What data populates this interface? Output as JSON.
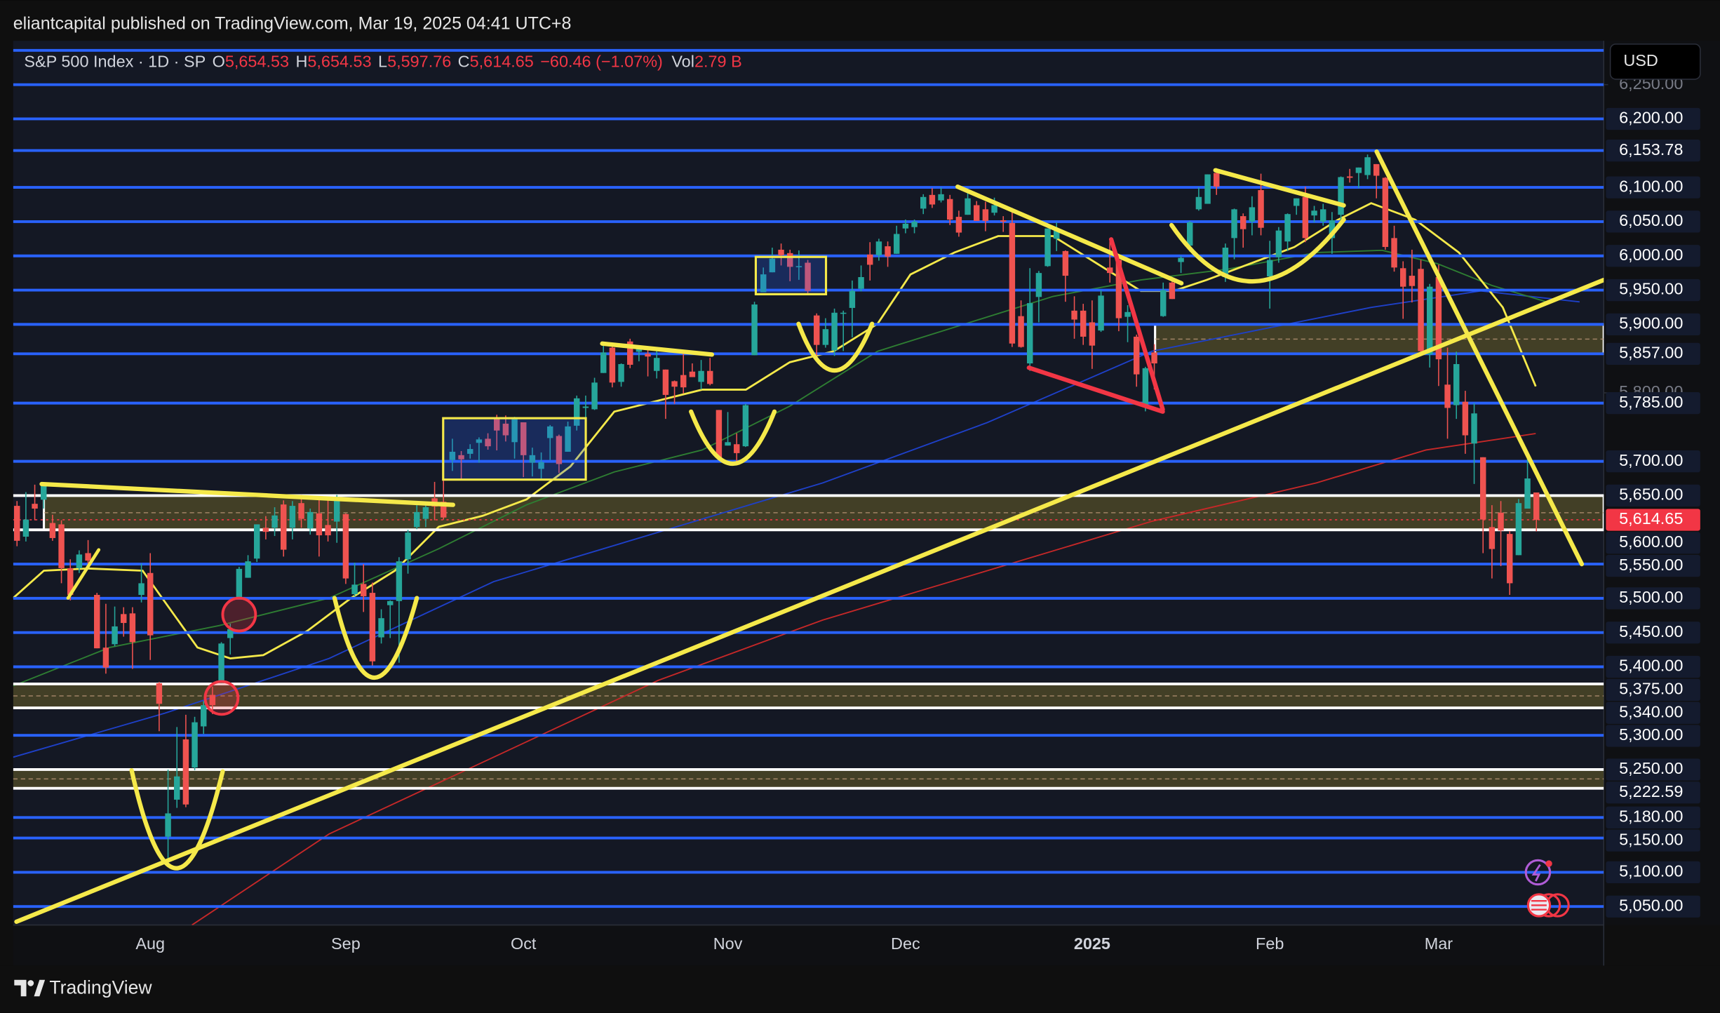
{
  "chart_data": {
    "type": "candlestick",
    "published": "eliantcapital published on TradingView.com, Mar 19, 2025 04:41 UTC+8",
    "symbol": "S&P 500 Index · 1D · SP",
    "ohlc": [
      {
        "key": "O",
        "value": "5,654.53"
      },
      {
        "key": "H",
        "value": "5,654.53"
      },
      {
        "key": "L",
        "value": "5,597.76"
      },
      {
        "key": "C",
        "value": "5,614.65"
      }
    ],
    "change": "−60.46 (−1.07%)",
    "volume": {
      "key": "Vol",
      "value": "2.79 B"
    },
    "currency": "USD",
    "brand": "TradingView",
    "up_color": "#26a69a",
    "down_color": "#ef5350",
    "ylim": [
      5023,
      6314
    ],
    "yticks": [
      {
        "value": 6250,
        "label": "6,250.00"
      },
      {
        "value": 5800,
        "label": "5,800.00"
      }
    ],
    "last_price": {
      "value": 5614.65,
      "label": "5,614.65",
      "color": "#f23645"
    },
    "unlabeled_levels": [
      6300,
      6250
    ],
    "level_color": "#2962ff",
    "levels": [
      {
        "value": 6200,
        "label": "6,200.00",
        "color": "#2962ff"
      },
      {
        "value": 6153.78,
        "label": "6,153.78",
        "color": "#2962ff"
      },
      {
        "value": 6100,
        "label": "6,100.00",
        "color": "#2962ff"
      },
      {
        "value": 6050,
        "label": "6,050.00",
        "color": "#2962ff"
      },
      {
        "value": 6000,
        "label": "6,000.00",
        "color": "#2962ff"
      },
      {
        "value": 5950,
        "label": "5,950.00",
        "color": "#2962ff"
      },
      {
        "value": 5900,
        "label": "5,900.00",
        "color": "#2962ff"
      },
      {
        "value": 5857,
        "label": "5,857.00",
        "color": "#2962ff"
      },
      {
        "value": 5785,
        "label": "5,785.00",
        "color": "#2962ff"
      },
      {
        "value": 5700,
        "label": "5,700.00",
        "color": "#2962ff"
      },
      {
        "value": 5650,
        "label": "5,650.00",
        "color": "#ffffff"
      },
      {
        "value": 5600,
        "label": "5,600.00",
        "color": "#ffffff"
      },
      {
        "value": 5550,
        "label": "5,550.00",
        "color": "#2962ff"
      },
      {
        "value": 5500,
        "label": "5,500.00",
        "color": "#2962ff"
      },
      {
        "value": 5450,
        "label": "5,450.00",
        "color": "#2962ff"
      },
      {
        "value": 5400,
        "label": "5,400.00",
        "color": "#2962ff"
      },
      {
        "value": 5375,
        "label": "5,375.00",
        "color": "#ffffff"
      },
      {
        "value": 5340,
        "label": "5,340.00",
        "color": "#ffffff"
      },
      {
        "value": 5300,
        "label": "5,300.00",
        "color": "#2962ff"
      },
      {
        "value": 5250,
        "label": "5,250.00",
        "color": "#ffffff"
      },
      {
        "value": 5222.59,
        "label": "5,222.59",
        "color": "#ffffff"
      },
      {
        "value": 5180,
        "label": "5,180.00",
        "color": "#2962ff"
      },
      {
        "value": 5150,
        "label": "5,150.00",
        "color": "#2962ff"
      },
      {
        "value": 5100,
        "label": "5,100.00",
        "color": "#2962ff"
      },
      {
        "value": 5050,
        "label": "5,050.00",
        "color": "#2962ff"
      }
    ],
    "zones": [
      {
        "top": 5900,
        "bottom": 5857,
        "color": "#4a4727"
      },
      {
        "top": 5650,
        "bottom": 5600,
        "color": "#4a4727"
      },
      {
        "top": 5375,
        "bottom": 5340,
        "color": "#4a4727"
      },
      {
        "top": 5250,
        "bottom": 5222.59,
        "color": "#4a4727"
      }
    ],
    "categories": [
      null,
      null,
      null,
      null,
      null,
      null,
      null,
      null,
      null,
      null,
      null,
      null,
      null,
      null,
      null,
      "Aug",
      null,
      null,
      null,
      null,
      null,
      null,
      null,
      null,
      null,
      null,
      null,
      null,
      null,
      null,
      null,
      null,
      null,
      null,
      null,
      null,
      null,
      "Sep",
      null,
      null,
      null,
      null,
      null,
      null,
      null,
      null,
      null,
      null,
      null,
      null,
      null,
      null,
      null,
      null,
      null,
      null,
      null,
      "Oct",
      null,
      null,
      null,
      null,
      null,
      null,
      null,
      null,
      null,
      null,
      null,
      null,
      null,
      null,
      null,
      null,
      null,
      null,
      null,
      null,
      null,
      null,
      "Nov",
      null,
      null,
      null,
      null,
      null,
      null,
      null,
      null,
      null,
      null,
      null,
      null,
      null,
      null,
      null,
      null,
      null,
      null,
      null,
      "Dec",
      null,
      null,
      null,
      null,
      null,
      null,
      null,
      null,
      null,
      null,
      null,
      null,
      null,
      null,
      null,
      null,
      null,
      null,
      null,
      null,
      "2025",
      null,
      null,
      null,
      null,
      null,
      null,
      null,
      null,
      null,
      null,
      null,
      null,
      null,
      null,
      null,
      null,
      null,
      null,
      null,
      "Feb",
      null,
      null,
      null,
      null,
      null,
      null,
      null,
      null,
      null,
      null,
      null,
      null,
      null,
      null,
      null,
      null,
      null,
      null,
      "Mar",
      null,
      null,
      null,
      null,
      null,
      null,
      null,
      null,
      null,
      null,
      null
    ],
    "candles": [
      [
        5635,
        5642,
        5576,
        5584
      ],
      [
        5590,
        5655,
        5583,
        5615
      ],
      [
        5638,
        5666,
        5614,
        5631
      ],
      [
        5644,
        5667,
        5631,
        5667
      ],
      [
        5610,
        5622,
        5584,
        5588
      ],
      [
        5608,
        5614,
        5522,
        5544
      ],
      [
        5544,
        5557,
        5497,
        5505
      ],
      [
        5544,
        5570,
        5537,
        5564
      ],
      [
        5566,
        5585,
        5551,
        5555
      ],
      [
        5505,
        5508,
        5427,
        5427
      ],
      [
        5428,
        5492,
        5390,
        5399
      ],
      [
        5433,
        5488,
        5430,
        5459
      ],
      [
        5477,
        5487,
        5444,
        5464
      ],
      [
        5478,
        5487,
        5397,
        5436
      ],
      [
        5505,
        5551,
        5494,
        5522
      ],
      [
        5537,
        5566,
        5410,
        5446
      ],
      [
        5376,
        5378,
        5306,
        5346
      ],
      [
        5152,
        5250,
        5119,
        5186
      ],
      [
        5206,
        5312,
        5194,
        5240
      ],
      [
        5294,
        5330,
        5195,
        5199
      ],
      [
        5253,
        5327,
        5249,
        5319
      ],
      [
        5313,
        5350,
        5302,
        5344
      ],
      [
        5359,
        5371,
        5331,
        5344
      ],
      [
        5376,
        5436,
        5376,
        5434
      ],
      [
        5442,
        5463,
        5418,
        5455
      ],
      [
        5501,
        5546,
        5498,
        5543
      ],
      [
        5530,
        5563,
        5530,
        5554
      ],
      [
        5558,
        5608,
        5553,
        5608
      ],
      [
        5603,
        5620,
        5586,
        5597
      ],
      [
        5603,
        5633,
        5591,
        5621
      ],
      [
        5637,
        5643,
        5561,
        5571
      ],
      [
        5603,
        5642,
        5586,
        5635
      ],
      [
        5639,
        5651,
        5603,
        5616
      ],
      [
        5602,
        5631,
        5593,
        5626
      ],
      [
        5624,
        5647,
        5561,
        5592
      ],
      [
        5607,
        5647,
        5583,
        5592
      ],
      [
        5612,
        5651,
        5581,
        5648
      ],
      [
        5623,
        5624,
        5521,
        5529
      ],
      [
        5506,
        5552,
        5503,
        5520
      ],
      [
        5521,
        5550,
        5480,
        5503
      ],
      [
        5508,
        5523,
        5402,
        5408
      ],
      [
        5443,
        5484,
        5434,
        5471
      ],
      [
        5490,
        5497,
        5442,
        5496
      ],
      [
        5496,
        5560,
        5406,
        5554
      ],
      [
        5557,
        5600,
        5536,
        5596
      ],
      [
        5604,
        5636,
        5601,
        5626
      ],
      [
        5616,
        5636,
        5604,
        5633
      ],
      [
        5646,
        5670,
        5614,
        5634
      ],
      [
        5641,
        5690,
        5615,
        5618
      ],
      [
        5702,
        5733,
        5686,
        5714
      ],
      [
        5709,
        5715,
        5674,
        5703
      ],
      [
        5711,
        5725,
        5704,
        5718
      ],
      [
        5727,
        5735,
        5698,
        5732
      ],
      [
        5733,
        5741,
        5717,
        5722
      ],
      [
        5762,
        5768,
        5716,
        5745
      ],
      [
        5755,
        5767,
        5729,
        5738
      ],
      [
        5728,
        5765,
        5704,
        5762
      ],
      [
        5757,
        5757,
        5677,
        5709
      ],
      [
        5698,
        5720,
        5678,
        5709
      ],
      [
        5689,
        5713,
        5675,
        5699
      ],
      [
        5734,
        5753,
        5702,
        5751
      ],
      [
        5737,
        5739,
        5683,
        5696
      ],
      [
        5714,
        5758,
        5714,
        5751
      ],
      [
        5752,
        5796,
        5745,
        5792
      ],
      [
        5778,
        5796,
        5764,
        5780
      ],
      [
        5776,
        5822,
        5775,
        5815
      ],
      [
        5829,
        5871,
        5829,
        5859
      ],
      [
        5866,
        5871,
        5808,
        5815
      ],
      [
        5816,
        5843,
        5809,
        5842
      ],
      [
        5875,
        5879,
        5836,
        5841
      ],
      [
        5860,
        5865,
        5846,
        5864
      ],
      [
        5857,
        5866,
        5824,
        5853
      ],
      [
        5832,
        5864,
        5821,
        5851
      ],
      [
        5834,
        5834,
        5762,
        5797
      ],
      [
        5817,
        5818,
        5784,
        5809
      ],
      [
        5826,
        5862,
        5799,
        5808
      ],
      [
        5831,
        5843,
        5823,
        5823
      ],
      [
        5816,
        5848,
        5805,
        5832
      ],
      [
        5832,
        5851,
        5811,
        5813
      ],
      [
        5775,
        5775,
        5703,
        5705
      ],
      [
        5723,
        5772,
        5723,
        5728
      ],
      [
        5725,
        5741,
        5696,
        5712
      ],
      [
        5722,
        5784,
        5721,
        5782
      ],
      [
        5855,
        5933,
        5855,
        5929
      ],
      [
        5947,
        5983,
        5947,
        5973
      ],
      [
        5976,
        6012,
        5976,
        5996
      ],
      [
        6009,
        6018,
        5986,
        6001
      ],
      [
        6004,
        6009,
        5963,
        5984
      ],
      [
        5985,
        6008,
        5965,
        5985
      ],
      [
        5990,
        5994,
        5945,
        5949
      ],
      [
        5913,
        5916,
        5854,
        5870
      ],
      [
        5870,
        5909,
        5866,
        5893
      ],
      [
        5862,
        5923,
        5854,
        5917
      ],
      [
        5917,
        5920,
        5861,
        5917
      ],
      [
        5924,
        5964,
        5881,
        5949
      ],
      [
        5952,
        5986,
        5948,
        5969
      ],
      [
        6002,
        6020,
        5964,
        5987
      ],
      [
        6001,
        6025,
        5993,
        6021
      ],
      [
        6014,
        6021,
        5984,
        5999
      ],
      [
        6003,
        6044,
        6003,
        6032
      ],
      [
        6040,
        6053,
        6033,
        6047
      ],
      [
        6042,
        6053,
        6033,
        6050
      ],
      [
        6069,
        6090,
        6061,
        6086
      ],
      [
        6089,
        6099,
        6070,
        6075
      ],
      [
        6081,
        6100,
        6078,
        6090
      ],
      [
        6083,
        6089,
        6045,
        6053
      ],
      [
        6057,
        6066,
        6028,
        6034
      ],
      [
        6060,
        6093,
        6060,
        6084
      ],
      [
        6074,
        6080,
        6051,
        6051
      ],
      [
        6068,
        6079,
        6036,
        6051
      ],
      [
        6063,
        6085,
        6059,
        6074
      ],
      [
        6052,
        6058,
        6035,
        6050
      ],
      [
        6048,
        6070,
        5867,
        5872
      ],
      [
        5912,
        5935,
        5866,
        5867
      ],
      [
        5843,
        5982,
        5832,
        5931
      ],
      [
        5940,
        5978,
        5903,
        5975
      ],
      [
        5985,
        6040,
        5984,
        6040
      ],
      [
        6025,
        6049,
        6007,
        6037
      ],
      [
        6007,
        6008,
        5933,
        5971
      ],
      [
        5920,
        5941,
        5879,
        5907
      ],
      [
        5920,
        5930,
        5870,
        5882
      ],
      [
        5903,
        5935,
        5835,
        5869
      ],
      [
        5891,
        5950,
        5889,
        5942
      ],
      [
        5983,
        6022,
        5961,
        5975
      ],
      [
        5994,
        6001,
        5890,
        5909
      ],
      [
        5911,
        5928,
        5874,
        5918
      ],
      [
        5882,
        5885,
        5809,
        5827
      ],
      [
        5782,
        5838,
        5773,
        5836
      ],
      [
        5859,
        5871,
        5805,
        5843
      ],
      [
        5912,
        5961,
        5911,
        5950
      ],
      [
        5961,
        5965,
        5937,
        5937
      ],
      [
        5991,
        6000,
        5975,
        5997
      ],
      [
        6015,
        6051,
        6006,
        6049
      ],
      [
        6068,
        6100,
        6066,
        6086
      ],
      [
        6076,
        6119,
        6076,
        6119
      ],
      [
        6121,
        6128,
        6089,
        6101
      ],
      [
        5969,
        6018,
        5962,
        6012
      ],
      [
        6026,
        6069,
        5995,
        6068
      ],
      [
        6058,
        6062,
        6012,
        6039
      ],
      [
        6050,
        6087,
        6030,
        6071
      ],
      [
        6096,
        6120,
        6030,
        6041
      ],
      [
        5970,
        6022,
        5923,
        5994
      ],
      [
        5998,
        6042,
        5990,
        6037
      ],
      [
        6021,
        6062,
        6007,
        6061
      ],
      [
        6073,
        6084,
        6060,
        6084
      ],
      [
        6086,
        6101,
        6020,
        6026
      ],
      [
        6059,
        6073,
        6049,
        6066
      ],
      [
        6050,
        6076,
        6044,
        6068
      ],
      [
        6026,
        6064,
        6003,
        6052
      ],
      [
        6060,
        6116,
        6051,
        6115
      ],
      [
        6116,
        6127,
        6107,
        6114
      ],
      [
        6121,
        6129,
        6099,
        6129
      ],
      [
        6118,
        6148,
        6112,
        6144
      ],
      [
        6134,
        6134,
        6084,
        6117
      ],
      [
        6114,
        6115,
        6009,
        6013
      ],
      [
        6026,
        6044,
        5977,
        5983
      ],
      [
        5982,
        5992,
        5908,
        5955
      ],
      [
        5971,
        6009,
        5932,
        5956
      ],
      [
        5981,
        5994,
        5858,
        5861
      ],
      [
        5856,
        5959,
        5837,
        5955
      ],
      [
        5969,
        5987,
        5810,
        5849
      ],
      [
        5812,
        5866,
        5733,
        5778
      ],
      [
        5782,
        5860,
        5762,
        5842
      ],
      [
        5787,
        5803,
        5711,
        5738
      ],
      [
        5726,
        5785,
        5667,
        5770
      ],
      [
        5706,
        5706,
        5566,
        5615
      ],
      [
        5604,
        5636,
        5529,
        5572
      ],
      [
        5625,
        5642,
        5547,
        5599
      ],
      [
        5594,
        5598,
        5505,
        5522
      ],
      [
        5563,
        5645,
        5563,
        5639
      ],
      [
        5631,
        5704,
        5631,
        5675
      ],
      [
        5654.53,
        5654.53,
        5597.76,
        5614.65
      ]
    ]
  }
}
